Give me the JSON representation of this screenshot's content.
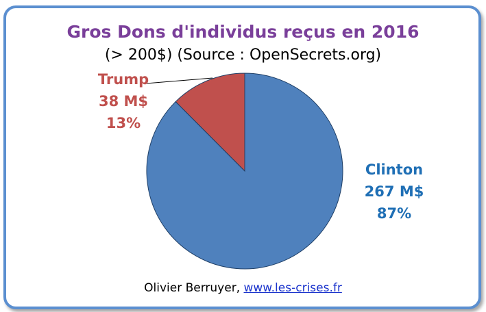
{
  "chart_data": {
    "type": "pie",
    "title": "Gros Dons d'individus reçus en 2016",
    "subtitle": "(> 200$) (Source : OpenSecrets.org)",
    "slices": [
      {
        "name": "Trump",
        "value": 38,
        "value_label": "38 M$",
        "percent_label": "13%",
        "color": "#c0504d"
      },
      {
        "name": "Clinton",
        "value": 267,
        "value_label": "267 M$",
        "percent_label": "87%",
        "color": "#4f81bd"
      }
    ]
  },
  "credit": {
    "author": "Olivier Berruyer,",
    "link": "www.les-crises.fr"
  }
}
